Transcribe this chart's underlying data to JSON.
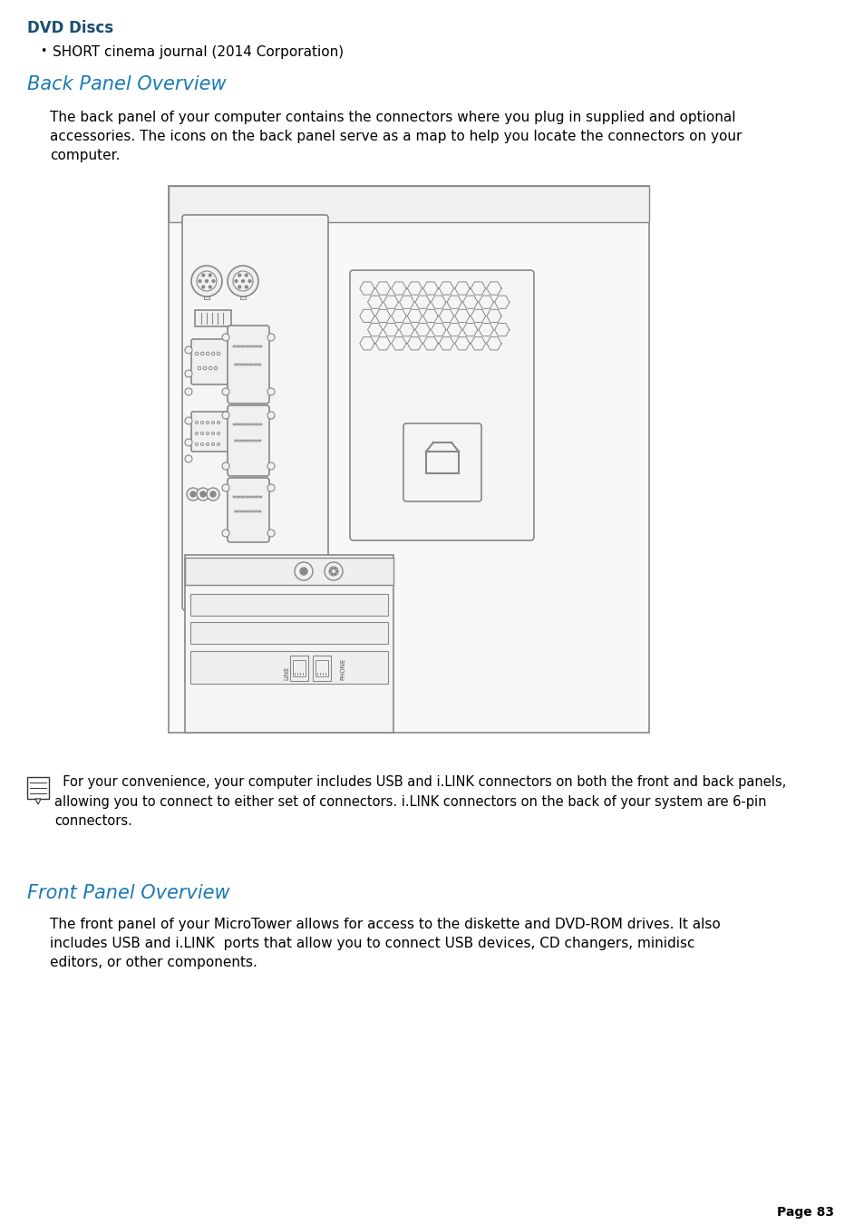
{
  "background_color": "#ffffff",
  "page_number": "Page 83",
  "dvd_discs_title": "DVD Discs",
  "dvd_discs_color": "#1a4f72",
  "bullet_item": "SHORT cinema journal (2014 Corporation)",
  "back_panel_title": "Back Panel Overview",
  "back_panel_color": "#1a7ab5",
  "back_panel_text": "The back panel of your computer contains the connectors where you plug in supplied and optional\naccessories. The icons on the back panel serve as a map to help you locate the connectors on your\ncomputer.",
  "note_text": "  For your convenience, your computer includes USB and i.LINK connectors on both the front and back panels,\nallowing you to connect to either set of connectors. i.LINK connectors on the back of your system are 6-pin\nconnectors.",
  "front_panel_title": "Front Panel Overview",
  "front_panel_color": "#1a7ab5",
  "front_panel_text": "The front panel of your MicroTower allows for access to the diskette and DVD-ROM drives. It also\nincludes USB and i.LINK  ports that allow you to connect USB devices, CD changers, minidisc\neditors, or other components.",
  "line_color": "#888888",
  "text_color": "#222222"
}
